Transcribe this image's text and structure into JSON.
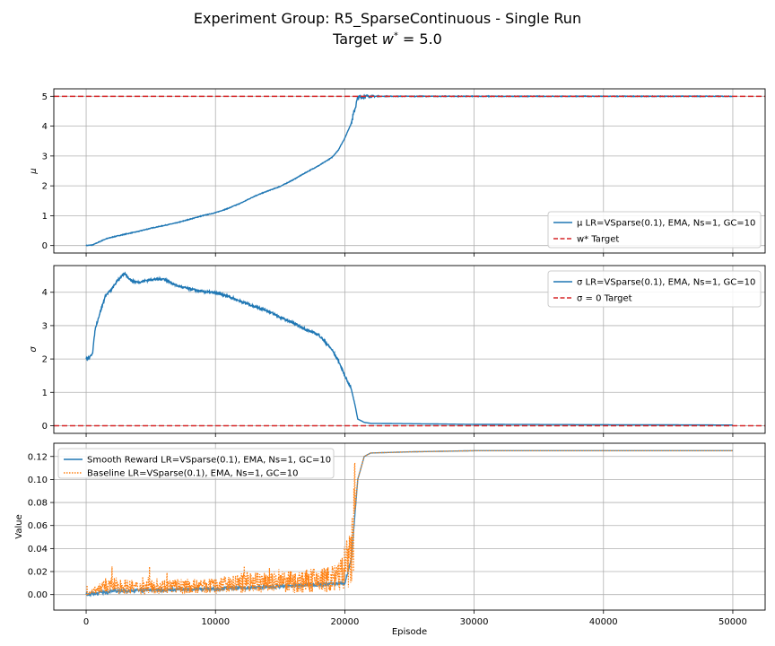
{
  "figure": {
    "title_line1": "Experiment Group: R5_SparseContinuous - Single Run",
    "title_line2_prefix": "Target ",
    "title_line2_symbol": "w",
    "title_line2_sup": "*",
    "title_line2_suffix": " = 5.0"
  },
  "colors": {
    "blue": "#1f77b4",
    "orange": "#ff7f0e",
    "red": "#d62728",
    "grid": "#b0b0b0"
  },
  "chart_data": [
    {
      "type": "line",
      "id": "mu",
      "ylabel": "μ",
      "xlabel": "",
      "xlim": [
        -2500,
        52500
      ],
      "ylim": [
        -0.25,
        5.25
      ],
      "xticks": [
        0,
        10000,
        20000,
        30000,
        40000,
        50000
      ],
      "yticks": [
        0,
        1,
        2,
        3,
        4,
        5
      ],
      "grid": true,
      "show_xticklabels": false,
      "legend_loc": "lower right",
      "series": [
        {
          "name": "μ LR=VSparse(0.1), EMA, Ns=1, GC=10",
          "style": "solid",
          "color": "#1f77b4",
          "x": [
            0,
            500,
            1000,
            1500,
            2000,
            3000,
            4000,
            5000,
            6000,
            7000,
            8000,
            9000,
            10000,
            11000,
            12000,
            13000,
            14000,
            15000,
            16000,
            17000,
            18000,
            19000,
            19500,
            20000,
            20500,
            21000,
            21500,
            22000,
            23000,
            25000,
            30000,
            35000,
            40000,
            45000,
            50000
          ],
          "y": [
            0,
            0.02,
            0.12,
            0.22,
            0.28,
            0.38,
            0.47,
            0.58,
            0.67,
            0.76,
            0.88,
            1.0,
            1.1,
            1.25,
            1.43,
            1.65,
            1.82,
            1.98,
            2.2,
            2.45,
            2.68,
            2.95,
            3.2,
            3.6,
            4.1,
            4.95,
            5.0,
            5.0,
            5.0,
            5.0,
            5.0,
            5.0,
            5.0,
            5.0,
            5.0
          ]
        },
        {
          "name": "w* Target",
          "style": "dashed",
          "color": "#d62728",
          "hline": 5.0
        }
      ]
    },
    {
      "type": "line",
      "id": "sigma",
      "ylabel": "σ",
      "xlabel": "",
      "xlim": [
        -2500,
        52500
      ],
      "ylim": [
        -0.23,
        4.8
      ],
      "xticks": [
        0,
        10000,
        20000,
        30000,
        40000,
        50000
      ],
      "yticks": [
        0,
        1,
        2,
        3,
        4
      ],
      "grid": true,
      "show_xticklabels": false,
      "legend_loc": "upper right",
      "series": [
        {
          "name": "σ LR=VSparse(0.1), EMA, Ns=1, GC=10",
          "style": "solid",
          "color": "#1f77b4",
          "x": [
            0,
            300,
            500,
            700,
            1000,
            1500,
            2000,
            2500,
            3000,
            3500,
            4000,
            5000,
            6000,
            7000,
            8000,
            9000,
            10000,
            11000,
            12000,
            13000,
            14000,
            15000,
            16000,
            17000,
            18000,
            19000,
            19500,
            20000,
            20500,
            20800,
            21000,
            21500,
            22000,
            25000,
            30000,
            40000,
            50000
          ],
          "y": [
            2.0,
            2.05,
            2.2,
            2.9,
            3.3,
            3.9,
            4.1,
            4.4,
            4.55,
            4.35,
            4.3,
            4.38,
            4.4,
            4.2,
            4.1,
            4.02,
            3.98,
            3.88,
            3.72,
            3.58,
            3.45,
            3.25,
            3.08,
            2.88,
            2.72,
            2.28,
            1.95,
            1.5,
            1.1,
            0.6,
            0.2,
            0.1,
            0.07,
            0.06,
            0.04,
            0.03,
            0.02
          ]
        },
        {
          "name": "σ = 0 Target",
          "style": "dashed",
          "color": "#d62728",
          "hline": 0.0
        }
      ]
    },
    {
      "type": "line",
      "id": "value",
      "ylabel": "Value",
      "xlabel": "Episode",
      "xlim": [
        -2500,
        52500
      ],
      "ylim": [
        -0.0135,
        0.1315
      ],
      "xticks": [
        0,
        10000,
        20000,
        30000,
        40000,
        50000
      ],
      "yticks": [
        0.0,
        0.02,
        0.04,
        0.06,
        0.08,
        0.1,
        0.12
      ],
      "grid": true,
      "show_xticklabels": true,
      "legend_loc": "upper left",
      "series": [
        {
          "name": "Smooth Reward LR=VSparse(0.1), EMA, Ns=1, GC=10",
          "style": "solid",
          "color": "#1f77b4",
          "x": [
            0,
            2000,
            5000,
            10000,
            15000,
            20000,
            20500,
            21000,
            21500,
            22000,
            25000,
            30000,
            40000,
            50000
          ],
          "y": [
            0.0,
            0.003,
            0.004,
            0.005,
            0.007,
            0.01,
            0.03,
            0.1,
            0.12,
            0.123,
            0.124,
            0.125,
            0.125,
            0.125
          ]
        },
        {
          "name": "Baseline LR=VSparse(0.1), EMA, Ns=1, GC=10",
          "style": "dotted",
          "color": "#ff7f0e",
          "x": [
            0,
            1000,
            2000,
            4000,
            6000,
            8000,
            10000,
            12000,
            14000,
            16000,
            18000,
            19500,
            20500,
            21000,
            21500,
            22000,
            25000,
            30000,
            40000,
            50000
          ],
          "y": [
            0.0,
            0.006,
            0.009,
            0.007,
            0.008,
            0.008,
            0.008,
            0.011,
            0.012,
            0.012,
            0.014,
            0.016,
            0.035,
            0.1,
            0.12,
            0.123,
            0.124,
            0.125,
            0.125,
            0.125
          ],
          "noise_until_x": 20800
        }
      ]
    }
  ]
}
